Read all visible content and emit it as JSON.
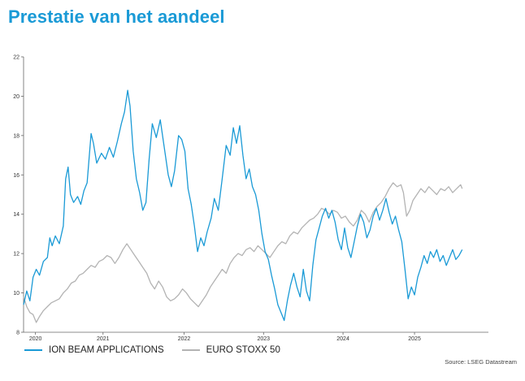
{
  "title": "Prestatie van het aandeel",
  "source": "Source: LSEG Datastream",
  "chart_data": {
    "type": "line",
    "xlim": [
      2019.7,
      2025.55
    ],
    "ylim": [
      8,
      22
    ],
    "yticks": [
      8,
      10,
      12,
      14,
      16,
      18,
      20,
      22
    ],
    "xticks": [
      {
        "label": "2020",
        "x": 2019.85
      },
      {
        "label": "2021",
        "x": 2020.7
      },
      {
        "label": "2022",
        "x": 2021.72
      },
      {
        "label": "2023",
        "x": 2022.72
      },
      {
        "label": "2024",
        "x": 2023.72
      },
      {
        "label": "2025",
        "x": 2024.62
      }
    ],
    "grid": false,
    "legend": "bottom-left",
    "series": [
      {
        "name": "ION BEAM APPLICATIONS",
        "color": "#1a9ad6",
        "points": [
          [
            2019.7,
            9.4
          ],
          [
            2019.74,
            10.1
          ],
          [
            2019.78,
            9.6
          ],
          [
            2019.82,
            10.8
          ],
          [
            2019.86,
            11.2
          ],
          [
            2019.9,
            10.9
          ],
          [
            2019.95,
            11.6
          ],
          [
            2020.0,
            11.8
          ],
          [
            2020.03,
            12.8
          ],
          [
            2020.06,
            12.4
          ],
          [
            2020.1,
            12.9
          ],
          [
            2020.15,
            12.5
          ],
          [
            2020.2,
            13.4
          ],
          [
            2020.23,
            15.8
          ],
          [
            2020.26,
            16.4
          ],
          [
            2020.29,
            15.0
          ],
          [
            2020.33,
            14.6
          ],
          [
            2020.38,
            14.9
          ],
          [
            2020.42,
            14.5
          ],
          [
            2020.46,
            15.2
          ],
          [
            2020.5,
            15.6
          ],
          [
            2020.55,
            18.1
          ],
          [
            2020.58,
            17.6
          ],
          [
            2020.62,
            16.6
          ],
          [
            2020.68,
            17.1
          ],
          [
            2020.73,
            16.8
          ],
          [
            2020.78,
            17.4
          ],
          [
            2020.83,
            16.9
          ],
          [
            2020.88,
            17.7
          ],
          [
            2020.93,
            18.6
          ],
          [
            2020.97,
            19.2
          ],
          [
            2021.01,
            20.3
          ],
          [
            2021.04,
            19.5
          ],
          [
            2021.08,
            17.2
          ],
          [
            2021.12,
            15.8
          ],
          [
            2021.16,
            15.1
          ],
          [
            2021.2,
            14.2
          ],
          [
            2021.24,
            14.6
          ],
          [
            2021.28,
            16.8
          ],
          [
            2021.32,
            18.6
          ],
          [
            2021.37,
            17.9
          ],
          [
            2021.42,
            18.8
          ],
          [
            2021.47,
            17.4
          ],
          [
            2021.52,
            16.0
          ],
          [
            2021.56,
            15.4
          ],
          [
            2021.6,
            16.2
          ],
          [
            2021.65,
            18.0
          ],
          [
            2021.69,
            17.8
          ],
          [
            2021.73,
            17.2
          ],
          [
            2021.77,
            15.3
          ],
          [
            2021.81,
            14.5
          ],
          [
            2021.85,
            13.4
          ],
          [
            2021.89,
            12.1
          ],
          [
            2021.93,
            12.8
          ],
          [
            2021.97,
            12.4
          ],
          [
            2022.01,
            13.1
          ],
          [
            2022.06,
            13.8
          ],
          [
            2022.1,
            14.8
          ],
          [
            2022.15,
            14.2
          ],
          [
            2022.2,
            15.8
          ],
          [
            2022.25,
            17.5
          ],
          [
            2022.3,
            17.0
          ],
          [
            2022.34,
            18.4
          ],
          [
            2022.38,
            17.6
          ],
          [
            2022.42,
            18.5
          ],
          [
            2022.46,
            17.0
          ],
          [
            2022.5,
            15.8
          ],
          [
            2022.54,
            16.3
          ],
          [
            2022.58,
            15.4
          ],
          [
            2022.62,
            15.0
          ],
          [
            2022.66,
            14.2
          ],
          [
            2022.7,
            13.0
          ],
          [
            2022.74,
            12.1
          ],
          [
            2022.78,
            11.7
          ],
          [
            2022.82,
            10.9
          ],
          [
            2022.86,
            10.2
          ],
          [
            2022.9,
            9.4
          ],
          [
            2022.94,
            9.0
          ],
          [
            2022.98,
            8.6
          ],
          [
            2023.02,
            9.6
          ],
          [
            2023.06,
            10.4
          ],
          [
            2023.1,
            11.0
          ],
          [
            2023.14,
            10.3
          ],
          [
            2023.18,
            9.8
          ],
          [
            2023.22,
            11.2
          ],
          [
            2023.26,
            10.1
          ],
          [
            2023.3,
            9.6
          ],
          [
            2023.34,
            11.4
          ],
          [
            2023.38,
            12.7
          ],
          [
            2023.42,
            13.3
          ],
          [
            2023.46,
            13.9
          ],
          [
            2023.5,
            14.3
          ],
          [
            2023.54,
            13.8
          ],
          [
            2023.58,
            14.2
          ],
          [
            2023.62,
            13.6
          ],
          [
            2023.66,
            12.7
          ],
          [
            2023.7,
            12.2
          ],
          [
            2023.74,
            13.3
          ],
          [
            2023.78,
            12.3
          ],
          [
            2023.82,
            11.8
          ],
          [
            2023.86,
            12.6
          ],
          [
            2023.9,
            13.4
          ],
          [
            2023.94,
            14.0
          ],
          [
            2023.98,
            13.6
          ],
          [
            2024.02,
            12.8
          ],
          [
            2024.06,
            13.2
          ],
          [
            2024.1,
            13.9
          ],
          [
            2024.14,
            14.3
          ],
          [
            2024.18,
            13.7
          ],
          [
            2024.22,
            14.2
          ],
          [
            2024.26,
            14.8
          ],
          [
            2024.3,
            14.1
          ],
          [
            2024.34,
            13.5
          ],
          [
            2024.38,
            13.9
          ],
          [
            2024.42,
            13.2
          ],
          [
            2024.46,
            12.6
          ],
          [
            2024.5,
            11.2
          ],
          [
            2024.54,
            9.7
          ],
          [
            2024.58,
            10.3
          ],
          [
            2024.62,
            9.9
          ],
          [
            2024.66,
            10.8
          ],
          [
            2024.7,
            11.3
          ],
          [
            2024.74,
            11.9
          ],
          [
            2024.78,
            11.5
          ],
          [
            2024.82,
            12.1
          ],
          [
            2024.86,
            11.8
          ],
          [
            2024.9,
            12.2
          ],
          [
            2024.94,
            11.6
          ],
          [
            2024.98,
            11.9
          ],
          [
            2025.02,
            11.4
          ],
          [
            2025.06,
            11.8
          ],
          [
            2025.1,
            12.2
          ],
          [
            2025.14,
            11.7
          ],
          [
            2025.18,
            11.9
          ],
          [
            2025.22,
            12.2
          ]
        ]
      },
      {
        "name": "EURO STOXX 50",
        "color": "#b3b3b3",
        "points": [
          [
            2019.7,
            9.8
          ],
          [
            2019.74,
            9.3
          ],
          [
            2019.78,
            9.0
          ],
          [
            2019.82,
            8.9
          ],
          [
            2019.86,
            8.5
          ],
          [
            2019.9,
            8.8
          ],
          [
            2019.95,
            9.1
          ],
          [
            2020.0,
            9.3
          ],
          [
            2020.05,
            9.5
          ],
          [
            2020.1,
            9.6
          ],
          [
            2020.15,
            9.7
          ],
          [
            2020.2,
            10.0
          ],
          [
            2020.25,
            10.2
          ],
          [
            2020.3,
            10.5
          ],
          [
            2020.35,
            10.6
          ],
          [
            2020.4,
            10.9
          ],
          [
            2020.45,
            11.0
          ],
          [
            2020.5,
            11.2
          ],
          [
            2020.55,
            11.4
          ],
          [
            2020.6,
            11.3
          ],
          [
            2020.65,
            11.6
          ],
          [
            2020.7,
            11.7
          ],
          [
            2020.75,
            11.9
          ],
          [
            2020.8,
            11.8
          ],
          [
            2020.85,
            11.5
          ],
          [
            2020.9,
            11.8
          ],
          [
            2020.95,
            12.2
          ],
          [
            2021.0,
            12.5
          ],
          [
            2021.05,
            12.2
          ],
          [
            2021.1,
            11.9
          ],
          [
            2021.15,
            11.6
          ],
          [
            2021.2,
            11.3
          ],
          [
            2021.25,
            11.0
          ],
          [
            2021.3,
            10.5
          ],
          [
            2021.35,
            10.2
          ],
          [
            2021.4,
            10.6
          ],
          [
            2021.45,
            10.3
          ],
          [
            2021.5,
            9.8
          ],
          [
            2021.55,
            9.6
          ],
          [
            2021.6,
            9.7
          ],
          [
            2021.65,
            9.9
          ],
          [
            2021.7,
            10.2
          ],
          [
            2021.75,
            10.0
          ],
          [
            2021.8,
            9.7
          ],
          [
            2021.85,
            9.5
          ],
          [
            2021.9,
            9.3
          ],
          [
            2021.95,
            9.6
          ],
          [
            2022.0,
            9.9
          ],
          [
            2022.05,
            10.3
          ],
          [
            2022.1,
            10.6
          ],
          [
            2022.15,
            10.9
          ],
          [
            2022.2,
            11.2
          ],
          [
            2022.25,
            11.0
          ],
          [
            2022.3,
            11.5
          ],
          [
            2022.35,
            11.8
          ],
          [
            2022.4,
            12.0
          ],
          [
            2022.45,
            11.9
          ],
          [
            2022.5,
            12.2
          ],
          [
            2022.55,
            12.3
          ],
          [
            2022.6,
            12.1
          ],
          [
            2022.65,
            12.4
          ],
          [
            2022.7,
            12.2
          ],
          [
            2022.75,
            12.0
          ],
          [
            2022.8,
            11.8
          ],
          [
            2022.85,
            12.1
          ],
          [
            2022.9,
            12.4
          ],
          [
            2022.95,
            12.6
          ],
          [
            2023.0,
            12.5
          ],
          [
            2023.05,
            12.9
          ],
          [
            2023.1,
            13.1
          ],
          [
            2023.15,
            13.0
          ],
          [
            2023.2,
            13.3
          ],
          [
            2023.25,
            13.5
          ],
          [
            2023.3,
            13.7
          ],
          [
            2023.35,
            13.8
          ],
          [
            2023.4,
            14.0
          ],
          [
            2023.45,
            14.3
          ],
          [
            2023.5,
            14.2
          ],
          [
            2023.55,
            14.0
          ],
          [
            2023.6,
            14.2
          ],
          [
            2023.65,
            14.1
          ],
          [
            2023.7,
            13.8
          ],
          [
            2023.75,
            13.9
          ],
          [
            2023.8,
            13.6
          ],
          [
            2023.85,
            13.4
          ],
          [
            2023.9,
            13.7
          ],
          [
            2023.95,
            14.2
          ],
          [
            2024.0,
            14.0
          ],
          [
            2024.05,
            13.6
          ],
          [
            2024.1,
            14.1
          ],
          [
            2024.15,
            14.4
          ],
          [
            2024.2,
            14.6
          ],
          [
            2024.25,
            14.9
          ],
          [
            2024.3,
            15.3
          ],
          [
            2024.35,
            15.6
          ],
          [
            2024.4,
            15.4
          ],
          [
            2024.45,
            15.5
          ],
          [
            2024.48,
            15.1
          ],
          [
            2024.52,
            13.9
          ],
          [
            2024.56,
            14.2
          ],
          [
            2024.6,
            14.7
          ],
          [
            2024.65,
            15.0
          ],
          [
            2024.7,
            15.3
          ],
          [
            2024.75,
            15.1
          ],
          [
            2024.8,
            15.4
          ],
          [
            2024.85,
            15.2
          ],
          [
            2024.9,
            15.0
          ],
          [
            2024.95,
            15.3
          ],
          [
            2025.0,
            15.2
          ],
          [
            2025.05,
            15.4
          ],
          [
            2025.1,
            15.1
          ],
          [
            2025.15,
            15.3
          ],
          [
            2025.2,
            15.5
          ],
          [
            2025.22,
            15.3
          ]
        ]
      }
    ]
  }
}
